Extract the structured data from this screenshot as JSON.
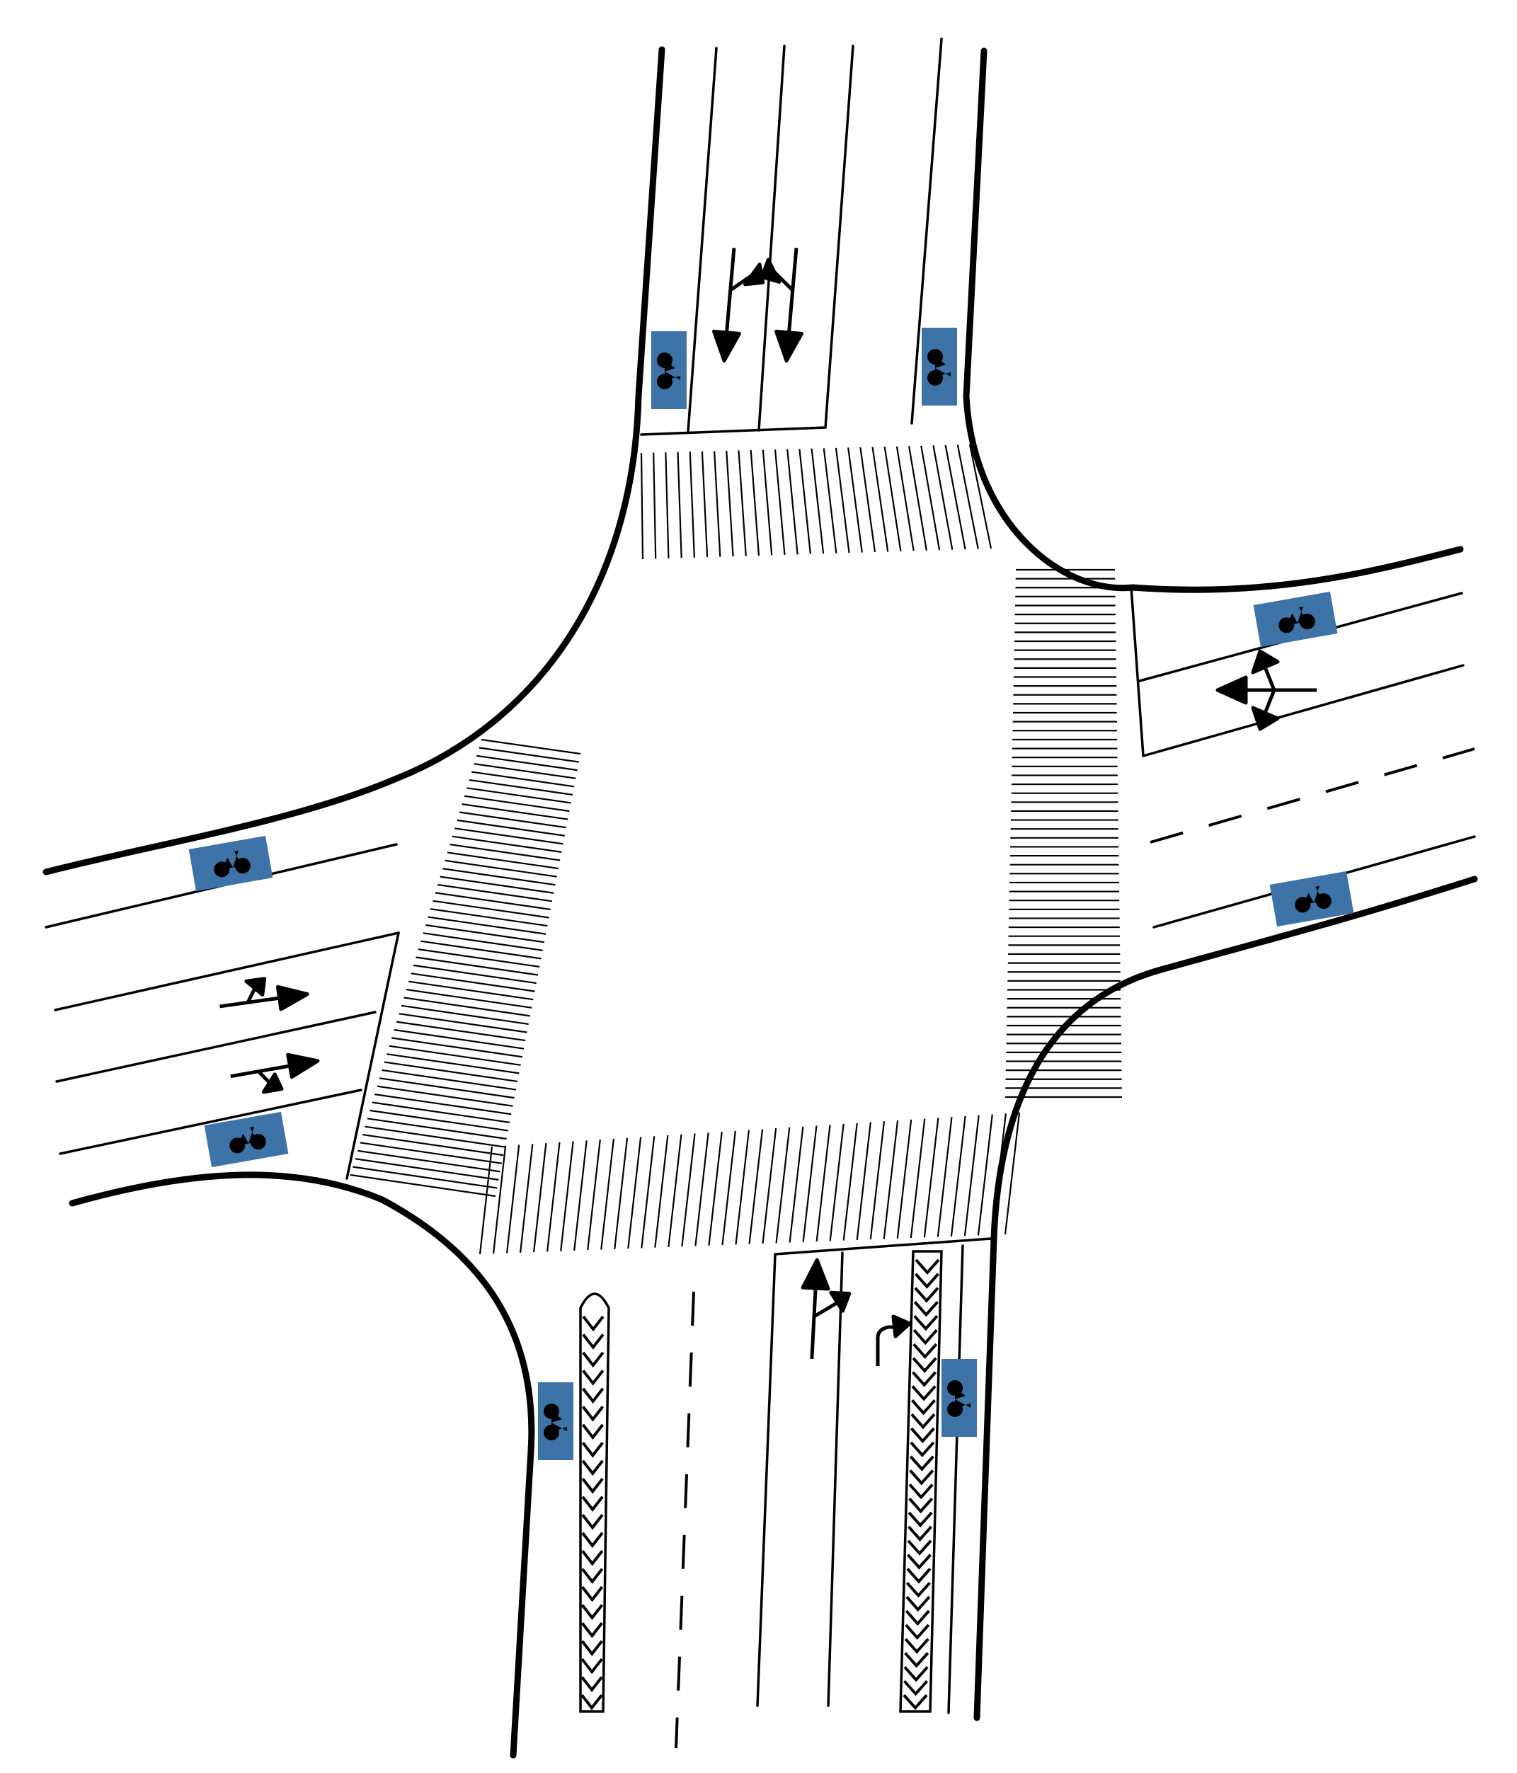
{
  "colors": {
    "background": "#ffffff",
    "marking": "#000000",
    "bike_sign": "#3d73a7",
    "bike_symbol": "#ffffff"
  },
  "icons": {
    "bike_lane_marker": "bicycle-icon",
    "turn_arrows": "arrow-icon",
    "crosswalk": "zebra-crossing",
    "median": "chevron-median"
  },
  "legs": {
    "north": {
      "bike_markers": 2,
      "lane_arrows": [
        "straight-left",
        "straight-right"
      ]
    },
    "east": {
      "bike_markers": 2,
      "lane_arrows": [
        "left-straight-right"
      ]
    },
    "south": {
      "bike_markers": 2,
      "lane_arrows": [
        "straight-left",
        "right"
      ]
    },
    "west": {
      "bike_markers": 2,
      "lane_arrows": [
        "straight-left",
        "straight-right"
      ]
    }
  },
  "crosswalks": [
    "north",
    "east",
    "south",
    "west"
  ]
}
